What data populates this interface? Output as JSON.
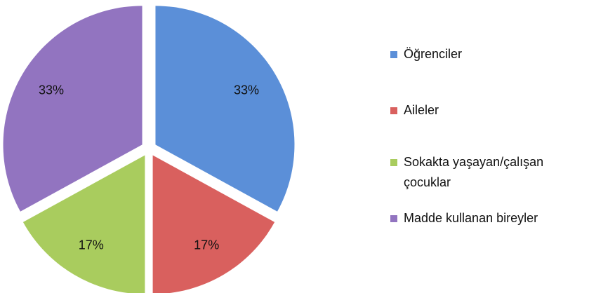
{
  "chart_data": {
    "type": "pie",
    "categories": [
      "Öğrenciler",
      "Aileler",
      "Sokakta yaşayan/çalışan çocuklar",
      "Madde kullanan bireyler"
    ],
    "values": [
      33,
      17,
      17,
      33
    ],
    "value_labels": [
      "33%",
      "17%",
      "17%",
      "33%"
    ],
    "colors": [
      "#5b8fd8",
      "#d9605e",
      "#a9cc5e",
      "#9274c0"
    ],
    "legend": "right"
  }
}
